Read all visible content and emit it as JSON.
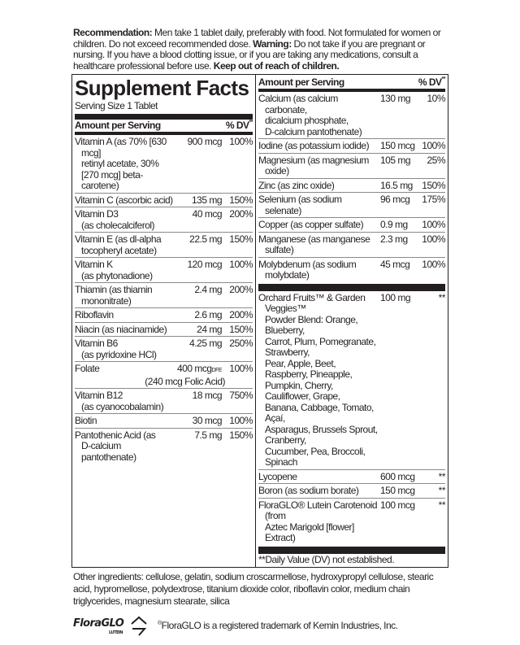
{
  "recommendation": {
    "label": "Recommendation:",
    "text": " Men take 1 tablet daily, preferably with food.  Not formulated for women or children.  Do not exceed recommended dose. ",
    "warning_label": "Warning:",
    "warning_text": " Do not take if you are pregnant or nursing. If you have a blood clotting issue, or if you are taking any medications, consult a healthcare professional before use. ",
    "keep_out": "Keep out of reach of children."
  },
  "facts": {
    "title": "Supplement Facts",
    "serving_size": "Serving Size 1 Tablet",
    "amount_header": "Amount per Serving",
    "dv_header": "% DV",
    "dv_mark": "**",
    "left_rows": [
      {
        "name": "Vitamin A (as 70% [630 mcg]\nretinyl acetate, 30%\n[270 mcg] beta-carotene)",
        "amount": "900 mcg",
        "dv": "100%"
      },
      {
        "name": "Vitamin C (ascorbic acid)",
        "amount": "135 mg",
        "dv": "150%"
      },
      {
        "name": "Vitamin D3\n(as cholecalciferol)",
        "amount": "40 mcg",
        "dv": "200%"
      },
      {
        "name": "Vitamin E (as dl-alpha\ntocopheryl acetate)",
        "amount": "22.5 mg",
        "dv": "150%"
      },
      {
        "name": "Vitamin K\n(as phytonadione)",
        "amount": "120 mcg",
        "dv": "100%"
      },
      {
        "name": "Thiamin (as thiamin\nmononitrate)",
        "amount": "2.4 mg",
        "dv": "200%"
      },
      {
        "name": "Riboflavin",
        "amount": "2.6 mg",
        "dv": "200%"
      },
      {
        "name": "Niacin (as niacinamide)",
        "amount": "24 mg",
        "dv": "150%"
      },
      {
        "name": "Vitamin B6\n(as pyridoxine HCl)",
        "amount": "4.25 mg",
        "dv": "250%"
      },
      {
        "name": "Folate",
        "amount": "400 mcg",
        "amount_unit": "DFE",
        "amount_note": "(240 mcg Folic Acid)",
        "dv": "100%"
      },
      {
        "name": "Vitamin B12\n(as cyanocobalamin)",
        "amount": "18 mcg",
        "dv": "750%"
      },
      {
        "name": "Biotin",
        "amount": "30 mcg",
        "dv": "100%"
      },
      {
        "name": "Pantothenic Acid (as\nD-calcium pantothenate)",
        "amount": "7.5 mg",
        "dv": "150%"
      }
    ],
    "right_rows": [
      {
        "name": "Calcium (as calcium carbonate,\ndicalcium phosphate,\nD-calcium pantothenate)",
        "amount": "130 mg",
        "dv": "10%"
      },
      {
        "name": "Iodine (as potassium iodide)",
        "amount": "150 mcg",
        "dv": "100%"
      },
      {
        "name": "Magnesium (as magnesium\noxide)",
        "amount": "105 mg",
        "dv": "25%"
      },
      {
        "name": "Zinc (as zinc oxide)",
        "amount": "16.5 mg",
        "dv": "150%"
      },
      {
        "name": "Selenium (as sodium selenate)",
        "amount": "96 mcg",
        "dv": "175%"
      },
      {
        "name": "Copper (as copper sulfate)",
        "amount": "0.9 mg",
        "dv": "100%"
      },
      {
        "name": "Manganese (as manganese\nsulfate)",
        "amount": "2.3 mg",
        "dv": "100%"
      },
      {
        "name": "Molybdenum (as sodium molybdate)",
        "amount": "45 mcg",
        "dv": "100%"
      }
    ],
    "other_rows": [
      {
        "name": "Orchard Fruits™ & Garden Veggies™\nPowder Blend: Orange, Blueberry,\nCarrot, Plum, Pomegranate, Strawberry,\nPear, Apple, Beet, Raspberry, Pineapple,\nPumpkin, Cherry, Cauliflower, Grape,\nBanana, Cabbage, Tomato, Açaí,\nAsparagus, Brussels Sprout, Cranberry,\nCucumber, Pea, Broccoli, Spinach",
        "amount": "100 mg",
        "dv": "**"
      },
      {
        "name": "Lycopene",
        "amount": "600 mcg",
        "dv": "**"
      },
      {
        "name": "Boron (as sodium borate)",
        "amount": "150 mcg",
        "dv": "**"
      },
      {
        "name": "FloraGLO® Lutein Carotenoid (from\nAztec Marigold [flower] Extract)",
        "amount": "100 mcg",
        "dv": "**"
      }
    ],
    "footnote": "**Daily Value (DV) not established."
  },
  "other_ingredients": "Other ingredients: cellulose, gelatin, sodium croscarmellose, hydroxypropyl cellulose, stearic acid, hypromellose, polydextrose, titanium dioxide color, riboflavin color, medium chain triglycerides, magnesium stearate, silica",
  "logo": {
    "brand": "FloraGLO",
    "sub": "LUTEIN"
  },
  "trademark": {
    "mark": "®",
    "text": "FloraGLO is a registered trademark of Kemin Industries, Inc."
  }
}
